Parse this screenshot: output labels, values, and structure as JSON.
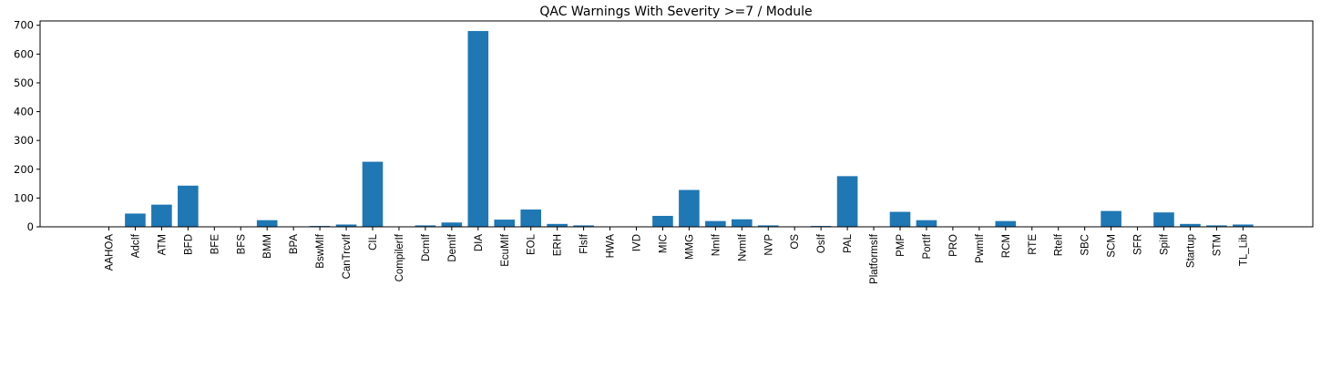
{
  "chart_data": {
    "type": "bar",
    "title": "QAC Warnings With Severity >=7 / Module",
    "xlabel": "",
    "ylabel": "",
    "ylim": [
      0,
      715
    ],
    "yticks": [
      0,
      100,
      200,
      300,
      400,
      500,
      600,
      700
    ],
    "grid": false,
    "legend": "none",
    "bar_color": "#1f77b4",
    "categories": [
      "AAHOA",
      "AdcIf",
      "ATM",
      "BFD",
      "BFE",
      "BFS",
      "BMM",
      "BPA",
      "BswMIf",
      "CanTrcvIf",
      "CIL",
      "CompilerIf",
      "DcmIf",
      "DemIf",
      "DIA",
      "EcuMIf",
      "EOL",
      "ERH",
      "FlsIf",
      "HWA",
      "IVD",
      "MIC",
      "MMG",
      "NmIf",
      "NvmIf",
      "NVP",
      "OS",
      "OsIf",
      "PAL",
      "PlatformsIf",
      "PMP",
      "PortIf",
      "PRO",
      "PwmIf",
      "RCM",
      "RTE",
      "RteIf",
      "SBC",
      "SCM",
      "SFR",
      "SpiIf",
      "Startup",
      "STM",
      "TL_Lib"
    ],
    "values": [
      0,
      46,
      77,
      143,
      0,
      0,
      23,
      0,
      3,
      8,
      226,
      0,
      5,
      15,
      680,
      25,
      60,
      10,
      5,
      0,
      0,
      38,
      128,
      20,
      26,
      5,
      0,
      3,
      176,
      0,
      52,
      23,
      0,
      0,
      20,
      0,
      0,
      0,
      55,
      0,
      50,
      10,
      5,
      8
    ]
  }
}
